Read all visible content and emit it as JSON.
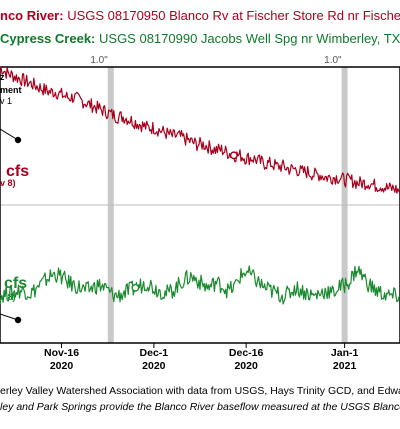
{
  "header": {
    "blanco_name": "nco River:",
    "blanco_desc": "USGS 08170950 Blanco Rv at Fischer Store Rd nr Fischer,",
    "cypress_name": "Cypress Creek:",
    "cypress_desc": "USGS 08170990 Jacobs Well Spg nr Wimberley, TX"
  },
  "footer": {
    "credit_line": "erley Valley Watershed Association with data from USGS, Hays Trinity GCD, and Edwards Aq",
    "note_line": "ley and Park Springs provide the Blanco River baseflow measured at the USGS Blanco River"
  },
  "colors": {
    "blanco": "#a8001c",
    "cypress": "#1a8a2e",
    "rain_band": "#c9c9c9",
    "grid": "#bdbdbd"
  },
  "chart_data": {
    "type": "line",
    "x_ticks": [
      {
        "line1": "Nov-16",
        "line2": "2020"
      },
      {
        "line1": "Dec-1",
        "line2": "2020"
      },
      {
        "line1": "Dec-16",
        "line2": "2020"
      },
      {
        "line1": "Jan-1",
        "line2": "2021"
      }
    ],
    "x_range": [
      "2020-11-06",
      "2021-01-10"
    ],
    "rain_events": [
      {
        "date": "2020-11-24",
        "label": "1.0\""
      },
      {
        "date": "2021-01-01",
        "label": "1.0\""
      }
    ],
    "series": [
      {
        "name": "Blanco River",
        "start": "2020-11-06",
        "values": [
          1.0,
          0.98,
          0.97,
          0.96,
          0.95,
          0.94,
          0.93,
          0.92,
          0.91,
          0.91,
          0.9,
          0.89,
          0.89,
          0.88,
          0.87,
          0.86,
          0.85,
          0.84,
          0.83,
          0.82,
          0.82,
          0.81,
          0.8,
          0.79,
          0.78,
          0.78,
          0.77,
          0.76,
          0.75,
          0.75,
          0.74,
          0.73,
          0.72,
          0.72,
          0.71,
          0.7,
          0.7,
          0.69,
          0.68,
          0.68,
          0.67,
          0.67,
          0.66,
          0.65,
          0.65,
          0.64,
          0.64,
          0.63,
          0.63,
          0.62,
          0.62,
          0.61,
          0.61,
          0.6,
          0.6,
          0.6,
          0.59,
          0.59,
          0.58,
          0.58,
          0.58,
          0.57,
          0.57,
          0.56,
          0.56,
          0.55
        ]
      },
      {
        "name": "Cypress Creek",
        "start": "2020-11-06",
        "values": [
          0.17,
          0.18,
          0.18,
          0.19,
          0.19,
          0.18,
          0.2,
          0.22,
          0.24,
          0.25,
          0.24,
          0.22,
          0.21,
          0.2,
          0.19,
          0.2,
          0.21,
          0.2,
          0.18,
          0.17,
          0.18,
          0.19,
          0.2,
          0.21,
          0.22,
          0.2,
          0.19,
          0.18,
          0.19,
          0.21,
          0.23,
          0.24,
          0.23,
          0.21,
          0.2,
          0.22,
          0.21,
          0.19,
          0.2,
          0.24,
          0.26,
          0.24,
          0.22,
          0.2,
          0.19,
          0.18,
          0.17,
          0.18,
          0.2,
          0.19,
          0.18,
          0.17,
          0.18,
          0.19,
          0.18,
          0.2,
          0.21,
          0.23,
          0.27,
          0.24,
          0.21,
          0.19,
          0.18,
          0.17,
          0.17,
          0.17
        ]
      }
    ],
    "annotations": {
      "blanco_value": "cfs",
      "blanco_date": "v 8)",
      "cypress_value": "cfs",
      "cypress_date": "v 8)",
      "marker_label_1": "z",
      "marker_label_2": "ment",
      "marker_label_3": "v 1"
    }
  }
}
